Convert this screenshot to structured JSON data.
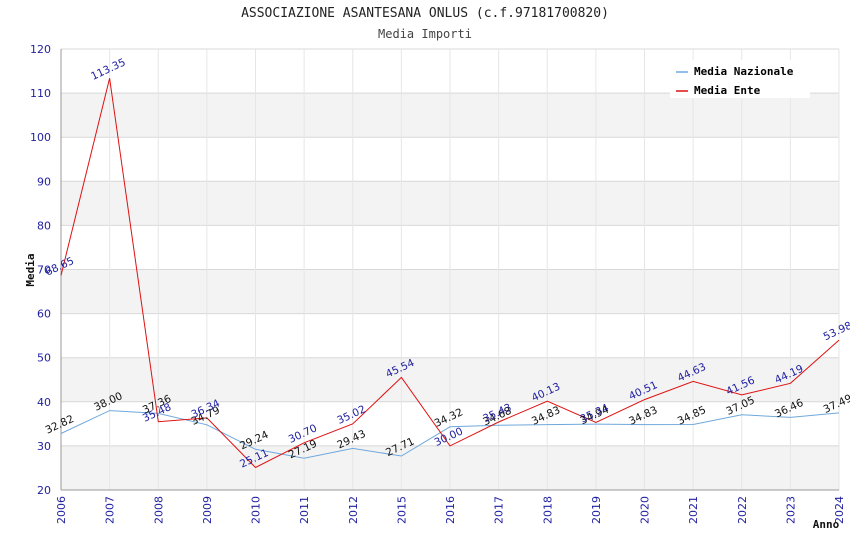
{
  "chart_data": {
    "type": "line",
    "title": "ASSOCIAZIONE ASANTESANA ONLUS (c.f.97181700820)",
    "subtitle": "Media Importi",
    "xlabel": "Anno",
    "ylabel": "Media",
    "ylim": [
      20,
      120
    ],
    "yticks": [
      20,
      30,
      40,
      50,
      60,
      70,
      80,
      90,
      100,
      110,
      120
    ],
    "grid": true,
    "legend_position": "top-right",
    "categories": [
      "2006",
      "2007",
      "2008",
      "2009",
      "2010",
      "2011",
      "2012",
      "2015",
      "2016",
      "2017",
      "2018",
      "2019",
      "2020",
      "2021",
      "2022",
      "2023",
      "2024"
    ],
    "series": [
      {
        "name": "Media Nazionale",
        "color": "#6fa8dc",
        "values": [
          32.82,
          38.0,
          37.36,
          34.79,
          29.24,
          27.19,
          29.43,
          27.71,
          34.32,
          34.68,
          34.83,
          34.94,
          34.83,
          34.85,
          37.05,
          36.46,
          37.49
        ],
        "labels": [
          "32.82",
          "38.00",
          "37.36",
          "34.79",
          "29.24",
          "27.19",
          "29.43",
          "27.71",
          "34.32",
          "34.68",
          "34.83",
          "34.94",
          "34.83",
          "34.85",
          "37.05",
          "36.46",
          "37.49"
        ]
      },
      {
        "name": "Media Ente",
        "color": "#e01010",
        "values": [
          68.65,
          113.35,
          35.48,
          36.34,
          25.11,
          30.7,
          35.02,
          45.54,
          30.0,
          35.43,
          40.13,
          35.34,
          40.51,
          44.63,
          41.56,
          44.19,
          53.98
        ],
        "labels": [
          "68.65",
          "113.35",
          "35.48",
          "36.34",
          "25.11",
          "30.70",
          "35.02",
          "45.54",
          "30.00",
          "35.43",
          "40.13",
          "35.34",
          "40.51",
          "44.63",
          "41.56",
          "44.19",
          "53.98"
        ]
      }
    ]
  }
}
